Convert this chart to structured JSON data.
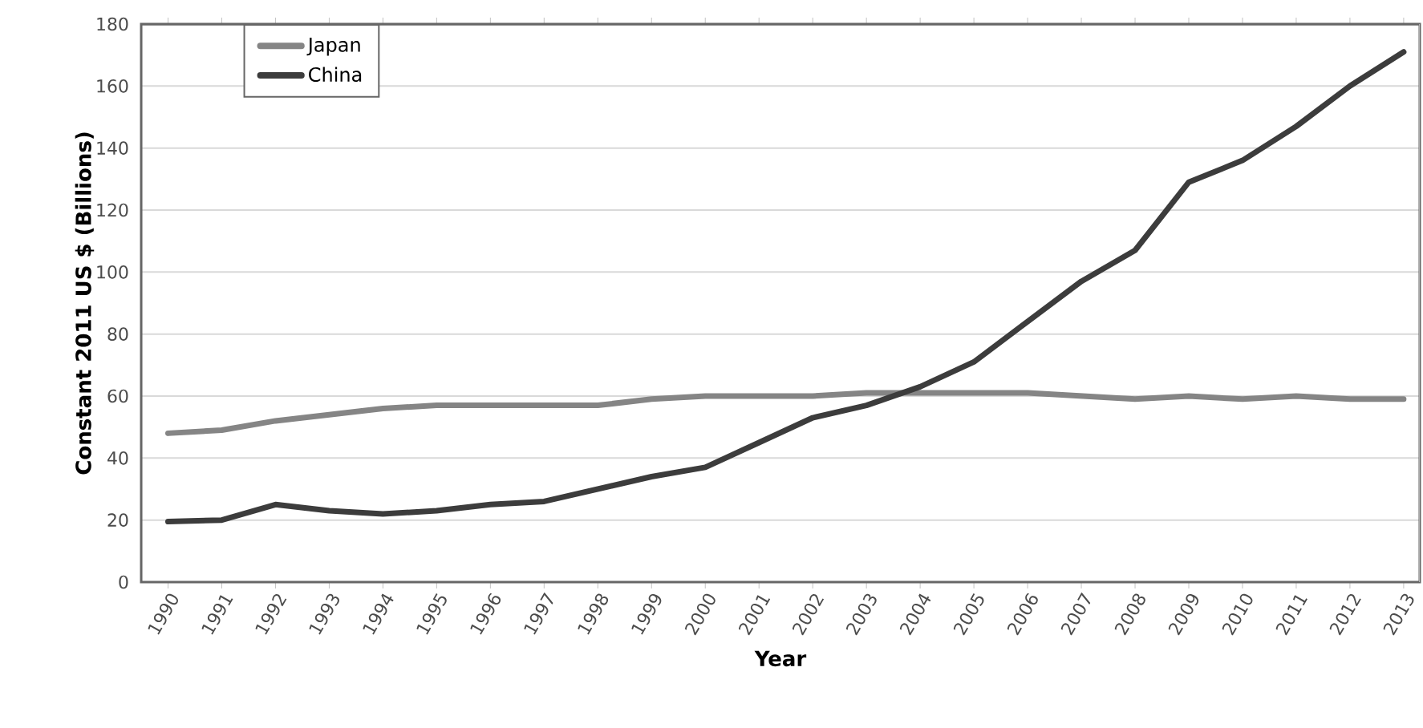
{
  "chart_data": {
    "type": "line",
    "xlabel": "Year",
    "ylabel": "Constant 2011 US $ (Billions)",
    "categories": [
      "1990",
      "1991",
      "1992",
      "1993",
      "1994",
      "1995",
      "1996",
      "1997",
      "1998",
      "1999",
      "2000",
      "2001",
      "2002",
      "2003",
      "2004",
      "2005",
      "2006",
      "2007",
      "2008",
      "2009",
      "2010",
      "2011",
      "2012",
      "2013"
    ],
    "series": [
      {
        "name": "Japan",
        "color": "#858585",
        "values": [
          48,
          49,
          52,
          54,
          56,
          57,
          57,
          57,
          57,
          59,
          60,
          60,
          60,
          61,
          61,
          61,
          61,
          60,
          59,
          60,
          59,
          60,
          59,
          59
        ]
      },
      {
        "name": "China",
        "color": "#3c3c3c",
        "values": [
          19.5,
          20,
          25,
          23,
          22,
          23,
          25,
          26,
          30,
          34,
          37,
          45,
          53,
          57,
          63,
          71,
          84,
          97,
          107,
          129,
          136,
          147,
          160,
          171
        ]
      }
    ],
    "ylim": [
      0,
      180
    ],
    "yticks": [
      0,
      20,
      40,
      60,
      80,
      100,
      120,
      140,
      160,
      180
    ],
    "grid": "y",
    "legend": "top left",
    "marker": "none",
    "line_style": "solid"
  }
}
